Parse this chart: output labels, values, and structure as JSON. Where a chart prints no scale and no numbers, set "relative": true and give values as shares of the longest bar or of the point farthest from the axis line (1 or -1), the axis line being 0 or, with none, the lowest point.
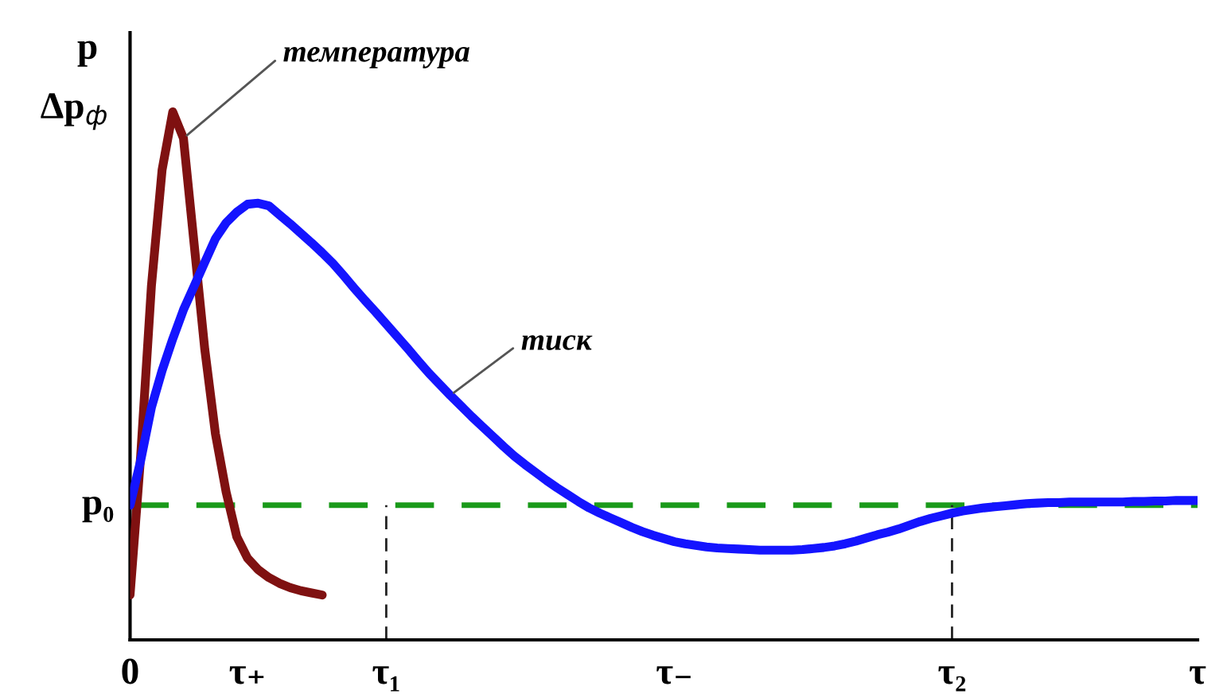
{
  "chart_data": {
    "type": "line",
    "relative": true,
    "ylabel": "p",
    "categories": [
      "0",
      null,
      null,
      null,
      null,
      null,
      null,
      null,
      null,
      null,
      null,
      "τ₊",
      null,
      null,
      null,
      null,
      null,
      null,
      null,
      null,
      null,
      null,
      null,
      null,
      "τ₁",
      null,
      null,
      null,
      null,
      null,
      null,
      null,
      null,
      null,
      null,
      null,
      null,
      null,
      null,
      null,
      null,
      null,
      null,
      null,
      null,
      null,
      null,
      null,
      null,
      null,
      null,
      "τ₋",
      null,
      null,
      null,
      null,
      null,
      null,
      null,
      null,
      null,
      null,
      null,
      null,
      null,
      null,
      null,
      null,
      null,
      null,
      null,
      null,
      null,
      null,
      null,
      null,
      null,
      "τ₂",
      null,
      null,
      null,
      null,
      null,
      null,
      null,
      null,
      null,
      null,
      null,
      null,
      null,
      null,
      null,
      null,
      null,
      null,
      null,
      null,
      null,
      null,
      "τ"
    ],
    "series": [
      {
        "name": "температура",
        "color": "#7f1111",
        "values": [
          0.085,
          0.35,
          0.67,
          0.89,
          1,
          0.95,
          0.75,
          0.55,
          0.39,
          0.28,
          0.195,
          0.155,
          0.133,
          0.118,
          0.107,
          0.099,
          0.093,
          0.089,
          0.085,
          null,
          null,
          null,
          null,
          null,
          null,
          null,
          null,
          null,
          null,
          null,
          null,
          null,
          null,
          null,
          null,
          null,
          null,
          null,
          null,
          null,
          null,
          null,
          null,
          null,
          null,
          null,
          null,
          null,
          null,
          null,
          null,
          null,
          null,
          null,
          null,
          null,
          null,
          null,
          null,
          null,
          null,
          null,
          null,
          null,
          null,
          null,
          null,
          null,
          null,
          null,
          null,
          null,
          null,
          null,
          null,
          null,
          null,
          null,
          null,
          null,
          null,
          null,
          null,
          null,
          null,
          null,
          null,
          null,
          null,
          null,
          null,
          null,
          null,
          null,
          null,
          null,
          null,
          null,
          null,
          null,
          null
        ]
      },
      {
        "name": "тиск",
        "color": "#1414ff",
        "values": [
          0.255,
          0.34,
          0.44,
          0.51,
          0.57,
          0.625,
          0.67,
          0.715,
          0.76,
          0.79,
          0.81,
          0.825,
          0.827,
          0.822,
          0.805,
          0.788,
          0.77,
          0.752,
          0.733,
          0.713,
          0.69,
          0.666,
          0.643,
          0.621,
          0.598,
          0.575,
          0.552,
          0.528,
          0.505,
          0.484,
          0.463,
          0.443,
          0.423,
          0.404,
          0.385,
          0.366,
          0.348,
          0.332,
          0.317,
          0.302,
          0.288,
          0.275,
          0.262,
          0.25,
          0.24,
          0.231,
          0.222,
          0.213,
          0.205,
          0.198,
          0.192,
          0.186,
          0.182,
          0.179,
          0.176,
          0.174,
          0.173,
          0.172,
          0.171,
          0.17,
          0.17,
          0.17,
          0.17,
          0.171,
          0.173,
          0.175,
          0.178,
          0.182,
          0.187,
          0.193,
          0.199,
          0.204,
          0.21,
          0.217,
          0.224,
          0.23,
          0.235,
          0.24,
          0.244,
          0.247,
          0.25,
          0.252,
          0.254,
          0.256,
          0.258,
          0.259,
          0.26,
          0.26,
          0.261,
          0.261,
          0.261,
          0.261,
          0.261,
          0.261,
          0.262,
          0.262,
          0.263,
          0.263,
          0.264,
          0.264,
          0.264
        ]
      }
    ],
    "ref_lines": [
      {
        "axis": "y",
        "value": 0.255,
        "label": "p₀",
        "color": "#1a9a1a",
        "line_style": "dashed"
      },
      {
        "axis": "x",
        "value": "τ₁",
        "color": "#222222",
        "line_style": "dashed"
      },
      {
        "axis": "x",
        "value": "τ₂",
        "color": "#222222",
        "line_style": "dashed"
      }
    ],
    "annotations": [
      "Δp$_{ф}$"
    ]
  }
}
